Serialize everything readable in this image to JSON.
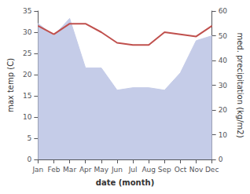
{
  "chart_data": {
    "type": "line",
    "xlabel": "date (month)",
    "ylabel": "max temp (C)",
    "y2label": "med. precipitation (kg/m2)",
    "categories": [
      "Jan",
      "Feb",
      "Mar",
      "Apr",
      "May",
      "Jun",
      "Jul",
      "Aug",
      "Sep",
      "Oct",
      "Nov",
      "Dec"
    ],
    "series": [
      {
        "type": "area",
        "axis": "y2",
        "color": "#c5cce8",
        "values": [
          55,
          50,
          57,
          37,
          37,
          28,
          29,
          29,
          28,
          35,
          48,
          50
        ]
      },
      {
        "type": "line",
        "axis": "y",
        "color": "#c0504d",
        "values": [
          31.5,
          29.5,
          32.0,
          32.0,
          30.0,
          27.5,
          27.0,
          27.0,
          30.0,
          29.5,
          29.0,
          31.5
        ]
      }
    ],
    "ylim": [
      0,
      35
    ],
    "yticks": [
      0,
      5,
      10,
      15,
      20,
      25,
      30,
      35
    ],
    "y2lim": [
      0,
      60
    ],
    "y2ticks": [
      0,
      10,
      20,
      30,
      40,
      50,
      60
    ],
    "grid": false
  }
}
